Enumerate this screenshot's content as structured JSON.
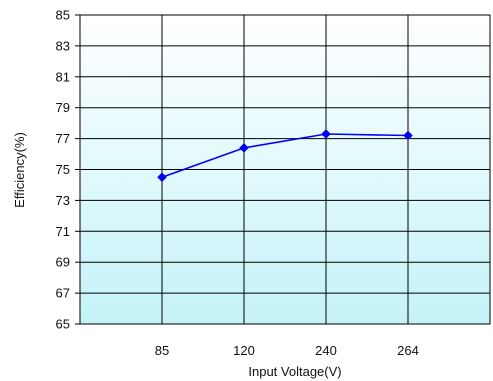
{
  "chart_data": {
    "type": "line",
    "title": "",
    "xlabel": "Input Voltage(V)",
    "ylabel": "Efficiency(%)",
    "categories": [
      "85",
      "120",
      "240",
      "264"
    ],
    "ylim": [
      65,
      85
    ],
    "yticks": [
      "65",
      "67",
      "69",
      "71",
      "73",
      "75",
      "77",
      "79",
      "81",
      "83",
      "85"
    ],
    "grid": true,
    "background_gradient": [
      "#ffffff",
      "#c4f3f8"
    ],
    "series": [
      {
        "color": "#0000ff",
        "marker": "diamond",
        "values": [
          74.5,
          76.4,
          77.3,
          77.2
        ]
      }
    ]
  }
}
